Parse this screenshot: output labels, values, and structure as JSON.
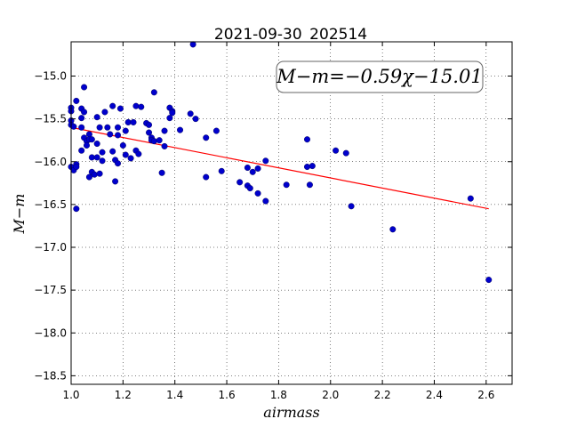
{
  "chart_data": {
    "type": "scatter",
    "title": "2021-09-30_202514",
    "xlabel": "airmass",
    "ylabel": "M−m",
    "annotation": "M−m=−0.59χ−15.01",
    "xlim": [
      1.0,
      2.7
    ],
    "ylim": [
      -18.6,
      -14.6
    ],
    "y_inverted": true,
    "grid": true,
    "xticks": [
      1.0,
      1.2,
      1.4,
      1.6,
      1.8,
      2.0,
      2.2,
      2.4,
      2.6
    ],
    "xtick_labels": [
      "1.0",
      "1.2",
      "1.4",
      "1.6",
      "1.8",
      "2.0",
      "2.2",
      "2.4",
      "2.6"
    ],
    "yticks": [
      -15.0,
      -15.5,
      -16.0,
      -16.5,
      -17.0,
      -17.5,
      -18.0,
      -18.5
    ],
    "ytick_labels": [
      "−15.0",
      "−15.5",
      "−16.0",
      "−16.5",
      "−17.0",
      "−17.5",
      "−18.0",
      "−18.5"
    ],
    "fit": {
      "slope": -0.59,
      "intercept": -15.01,
      "x_range": [
        1.0,
        2.61
      ],
      "color": "#ff0000"
    },
    "marker_color": "#0000cc",
    "points": [
      [
        1.0,
        -15.37
      ],
      [
        1.0,
        -15.41
      ],
      [
        1.0,
        -15.52
      ],
      [
        1.0,
        -15.57
      ],
      [
        1.01,
        -15.59
      ],
      [
        1.0,
        -16.06
      ],
      [
        1.01,
        -16.1
      ],
      [
        1.02,
        -16.03
      ],
      [
        1.02,
        -16.06
      ],
      [
        1.02,
        -15.29
      ],
      [
        1.02,
        -16.55
      ],
      [
        1.04,
        -15.38
      ],
      [
        1.04,
        -15.49
      ],
      [
        1.04,
        -15.6
      ],
      [
        1.04,
        -15.87
      ],
      [
        1.05,
        -15.72
      ],
      [
        1.05,
        -15.13
      ],
      [
        1.05,
        -15.42
      ],
      [
        1.06,
        -15.76
      ],
      [
        1.06,
        -15.81
      ],
      [
        1.07,
        -15.68
      ],
      [
        1.07,
        -15.74
      ],
      [
        1.07,
        -16.18
      ],
      [
        1.08,
        -15.74
      ],
      [
        1.08,
        -15.95
      ],
      [
        1.08,
        -16.12
      ],
      [
        1.09,
        -16.15
      ],
      [
        1.1,
        -15.48
      ],
      [
        1.1,
        -15.79
      ],
      [
        1.1,
        -15.95
      ],
      [
        1.11,
        -16.14
      ],
      [
        1.11,
        -15.6
      ],
      [
        1.12,
        -15.89
      ],
      [
        1.12,
        -15.99
      ],
      [
        1.13,
        -15.42
      ],
      [
        1.14,
        -15.6
      ],
      [
        1.15,
        -15.68
      ],
      [
        1.16,
        -15.35
      ],
      [
        1.16,
        -15.88
      ],
      [
        1.17,
        -16.23
      ],
      [
        1.17,
        -15.98
      ],
      [
        1.18,
        -15.6
      ],
      [
        1.18,
        -15.69
      ],
      [
        1.18,
        -16.02
      ],
      [
        1.19,
        -15.38
      ],
      [
        1.2,
        -15.81
      ],
      [
        1.21,
        -15.64
      ],
      [
        1.21,
        -15.92
      ],
      [
        1.22,
        -15.54
      ],
      [
        1.23,
        -15.96
      ],
      [
        1.24,
        -15.54
      ],
      [
        1.25,
        -15.35
      ],
      [
        1.25,
        -15.87
      ],
      [
        1.26,
        -15.91
      ],
      [
        1.27,
        -15.36
      ],
      [
        1.29,
        -15.55
      ],
      [
        1.3,
        -15.57
      ],
      [
        1.3,
        -15.66
      ],
      [
        1.31,
        -15.72
      ],
      [
        1.31,
        -15.75
      ],
      [
        1.32,
        -15.19
      ],
      [
        1.32,
        -15.76
      ],
      [
        1.34,
        -15.75
      ],
      [
        1.35,
        -16.13
      ],
      [
        1.36,
        -15.64
      ],
      [
        1.36,
        -15.82
      ],
      [
        1.38,
        -15.37
      ],
      [
        1.38,
        -15.49
      ],
      [
        1.39,
        -15.41
      ],
      [
        1.39,
        -15.43
      ],
      [
        1.42,
        -15.63
      ],
      [
        1.46,
        -15.44
      ],
      [
        1.47,
        -14.63
      ],
      [
        1.48,
        -15.5
      ],
      [
        1.52,
        -15.72
      ],
      [
        1.52,
        -16.18
      ],
      [
        1.56,
        -15.64
      ],
      [
        1.58,
        -16.11
      ],
      [
        1.65,
        -16.24
      ],
      [
        1.68,
        -16.07
      ],
      [
        1.68,
        -16.28
      ],
      [
        1.69,
        -16.31
      ],
      [
        1.7,
        -16.12
      ],
      [
        1.72,
        -16.37
      ],
      [
        1.72,
        -16.08
      ],
      [
        1.75,
        -15.99
      ],
      [
        1.75,
        -16.46
      ],
      [
        1.83,
        -16.27
      ],
      [
        1.91,
        -15.74
      ],
      [
        1.91,
        -16.06
      ],
      [
        1.92,
        -16.27
      ],
      [
        1.93,
        -16.05
      ],
      [
        2.02,
        -15.87
      ],
      [
        2.06,
        -15.9
      ],
      [
        2.08,
        -16.52
      ],
      [
        2.24,
        -16.79
      ],
      [
        2.54,
        -16.43
      ],
      [
        2.61,
        -17.38
      ]
    ]
  }
}
